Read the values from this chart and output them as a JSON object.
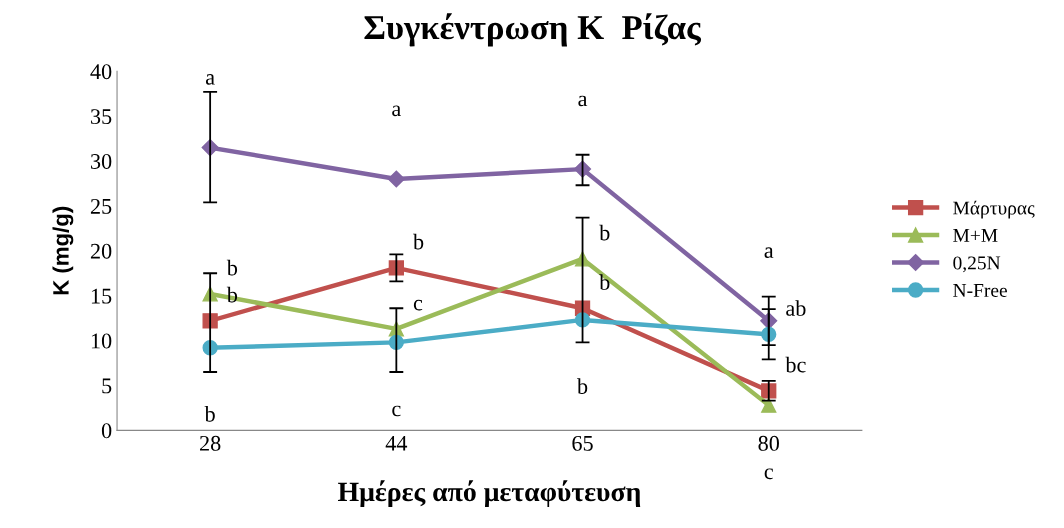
{
  "chart_data": {
    "type": "line",
    "title": "Συγκέντρωση Κ  Ρίζας",
    "xlabel": "Ημέρες από μεταφύτευση",
    "ylabel": "K (mg/g)",
    "categories": [
      "28",
      "44",
      "65",
      "80"
    ],
    "ylim": [
      0,
      40
    ],
    "yticks": [
      0,
      5,
      10,
      15,
      20,
      25,
      30,
      35,
      40
    ],
    "grid": false,
    "legend": "right",
    "series": [
      {
        "name": "Μάρτυρας",
        "color": "#c0504d",
        "marker": "square",
        "values": [
          12.2,
          18.1,
          13.6,
          4.4
        ],
        "errors": [
          [
            6.5,
            17.5
          ],
          [
            16.6,
            19.6
          ],
          null,
          [
            3.3,
            5.5
          ]
        ]
      },
      {
        "name": "M+M",
        "color": "#9bbb59",
        "marker": "triangle",
        "values": [
          15.2,
          11.3,
          19.1,
          2.8
        ],
        "errors": [
          null,
          null,
          [
            9.8,
            23.7
          ],
          null
        ]
      },
      {
        "name": "0,25N",
        "color": "#8064a2",
        "marker": "diamond",
        "values": [
          31.5,
          28.0,
          29.1,
          12.2
        ],
        "errors": [
          [
            25.4,
            37.7
          ],
          null,
          [
            27.3,
            30.7
          ],
          [
            9.5,
            14.9
          ]
        ]
      },
      {
        "name": "N-Free",
        "color": "#4bacc6",
        "marker": "circle",
        "values": [
          9.2,
          9.8,
          12.3,
          10.7
        ],
        "errors": [
          null,
          [
            6.5,
            13.6
          ],
          null,
          [
            7.9,
            13.5
          ]
        ]
      }
    ],
    "annotations": [
      {
        "text": "a",
        "x": "28",
        "y": 31.5
      },
      {
        "text": "b",
        "x": "28",
        "y": 15.2
      },
      {
        "text": "b",
        "x": "28",
        "y": 12.2
      },
      {
        "text": "b",
        "x": "28",
        "y": 9.2
      },
      {
        "text": "a",
        "x": "44",
        "y": 28.0
      },
      {
        "text": "b",
        "x": "44",
        "y": 18.1
      },
      {
        "text": "c",
        "x": "44",
        "y": 11.3
      },
      {
        "text": "c",
        "x": "44",
        "y": 9.8
      },
      {
        "text": "a",
        "x": "65",
        "y": 29.1
      },
      {
        "text": "b",
        "x": "65",
        "y": 19.1
      },
      {
        "text": "b",
        "x": "65",
        "y": 13.6
      },
      {
        "text": "b",
        "x": "65",
        "y": 12.3
      },
      {
        "text": "a",
        "x": "80",
        "y": 12.2
      },
      {
        "text": "ab",
        "x": "80",
        "y": 10.7
      },
      {
        "text": "bc",
        "x": "80",
        "y": 4.4
      },
      {
        "text": "c",
        "x": "80",
        "y": 2.8
      }
    ]
  }
}
